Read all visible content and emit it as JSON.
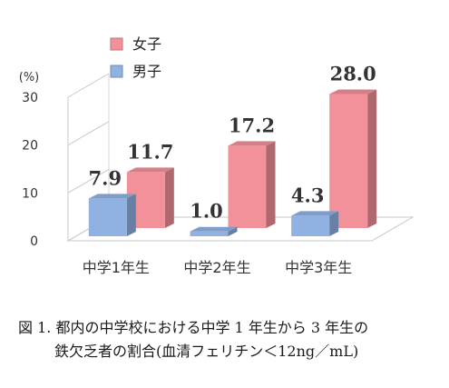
{
  "chart_data": {
    "type": "bar",
    "categories": [
      "中学1年生",
      "中学2年生",
      "中学3年生"
    ],
    "series": [
      {
        "name": "女子",
        "values": [
          11.7,
          17.2,
          28.0
        ],
        "labels": [
          "11.7",
          "17.2",
          "28.0"
        ],
        "color": "#f2919a"
      },
      {
        "name": "男子",
        "values": [
          7.9,
          1.0,
          4.3
        ],
        "labels": [
          "7.9",
          "1.0",
          "4.3"
        ],
        "color": "#8fb2e3"
      }
    ],
    "y_unit": "(%)",
    "ylim": [
      0,
      30
    ],
    "yticks": [
      "0",
      "10",
      "20",
      "30"
    ],
    "legend_position": "top-left",
    "grid": false,
    "style": "3d-bar"
  },
  "caption": {
    "line1": "図 1. 都内の中学校における中学 1 年生から 3 年生の",
    "line2": "鉄欠乏者の割合(血清フェリチン＜12ng／mL)"
  }
}
